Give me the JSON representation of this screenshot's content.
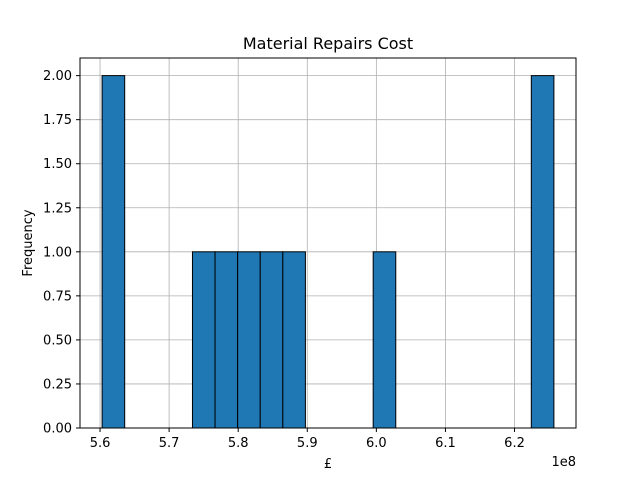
{
  "chart_data": {
    "type": "bar",
    "title": "Material Repairs Cost",
    "xlabel": "£",
    "ylabel": "Frequency",
    "x_offset_label": "1e8",
    "x_scale": 100000000,
    "xlim": [
      5.571,
      6.289
    ],
    "ylim": [
      0,
      2.1
    ],
    "x_ticks": [
      5.6,
      5.7,
      5.8,
      5.9,
      6.0,
      6.1,
      6.2
    ],
    "x_tick_labels": [
      "5.6",
      "5.7",
      "5.8",
      "5.9",
      "6.0",
      "6.1",
      "6.2"
    ],
    "y_ticks": [
      0,
      0.25,
      0.5,
      0.75,
      1.0,
      1.25,
      1.5,
      1.75,
      2.0
    ],
    "y_tick_labels": [
      "0.00",
      "0.25",
      "0.50",
      "0.75",
      "1.00",
      "1.25",
      "1.50",
      "1.75",
      "2.00"
    ],
    "bin_edges": [
      5.603,
      5.6357,
      5.6684,
      5.7011,
      5.7338,
      5.7665,
      5.7992,
      5.8319,
      5.8646,
      5.8973,
      5.93,
      5.9627,
      5.9954,
      6.0281,
      6.0608,
      6.0935,
      6.1262,
      6.1589,
      6.1916,
      6.2243,
      6.257
    ],
    "counts": [
      2,
      0,
      0,
      0,
      1,
      1,
      1,
      1,
      1,
      0,
      0,
      0,
      1,
      0,
      0,
      0,
      0,
      0,
      0,
      2
    ],
    "grid": true,
    "bar_color": "#1f77b4",
    "edge_color": "#000000",
    "grid_color": "#b0b0b0"
  }
}
